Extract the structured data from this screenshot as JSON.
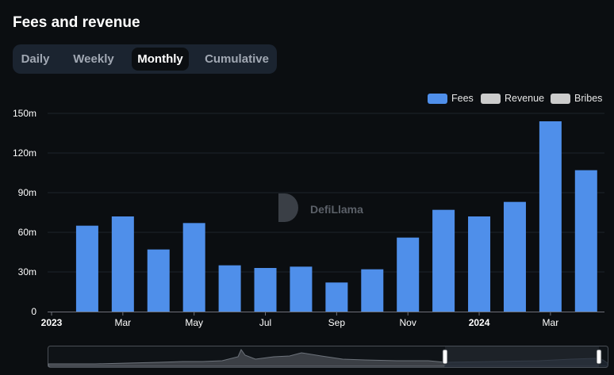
{
  "header": {
    "title": "Fees and revenue"
  },
  "tabs": [
    {
      "label": "Daily",
      "active": false
    },
    {
      "label": "Weekly",
      "active": false
    },
    {
      "label": "Monthly",
      "active": true
    },
    {
      "label": "Cumulative",
      "active": false
    }
  ],
  "legend": [
    {
      "label": "Fees",
      "color": "#4f8fea"
    },
    {
      "label": "Revenue",
      "color": "#cccccc"
    },
    {
      "label": "Bribes",
      "color": "#cccccc"
    }
  ],
  "watermark": "DefiLlama",
  "colors": {
    "background": "#0b0e11",
    "bar": "#4f8fea",
    "tab_bg": "#1b2430",
    "grid": "#1e242b"
  },
  "chart_data": {
    "type": "bar",
    "x": [
      "2023-02",
      "2023-03",
      "2023-04",
      "2023-05",
      "2023-06",
      "2023-07",
      "2023-08",
      "2023-09",
      "2023-10",
      "2023-11",
      "2023-12",
      "2024-01",
      "2024-02",
      "2024-03",
      "2024-04"
    ],
    "series": [
      {
        "name": "Fees",
        "values": [
          65,
          72,
          47,
          67,
          35,
          33,
          34,
          22,
          32,
          56,
          77,
          72,
          83,
          144,
          107
        ]
      }
    ],
    "x_tick_labels": [
      {
        "label": "2023",
        "at": "2023-01",
        "bold": true
      },
      {
        "label": "Mar",
        "at": "2023-03",
        "bold": false
      },
      {
        "label": "May",
        "at": "2023-05",
        "bold": false
      },
      {
        "label": "Jul",
        "at": "2023-07",
        "bold": false
      },
      {
        "label": "Sep",
        "at": "2023-09",
        "bold": false
      },
      {
        "label": "Nov",
        "at": "2023-11",
        "bold": false
      },
      {
        "label": "2024",
        "at": "2024-01",
        "bold": true
      },
      {
        "label": "Mar",
        "at": "2024-03",
        "bold": false
      }
    ],
    "y_ticks": [
      "0",
      "30m",
      "60m",
      "90m",
      "120m",
      "150m"
    ],
    "y_tick_values": [
      0,
      30,
      60,
      90,
      120,
      150
    ],
    "ylim": [
      0,
      150
    ],
    "y_unit": "millions",
    "grid": true,
    "legend_position": "top-right",
    "title": "Fees and revenue"
  }
}
